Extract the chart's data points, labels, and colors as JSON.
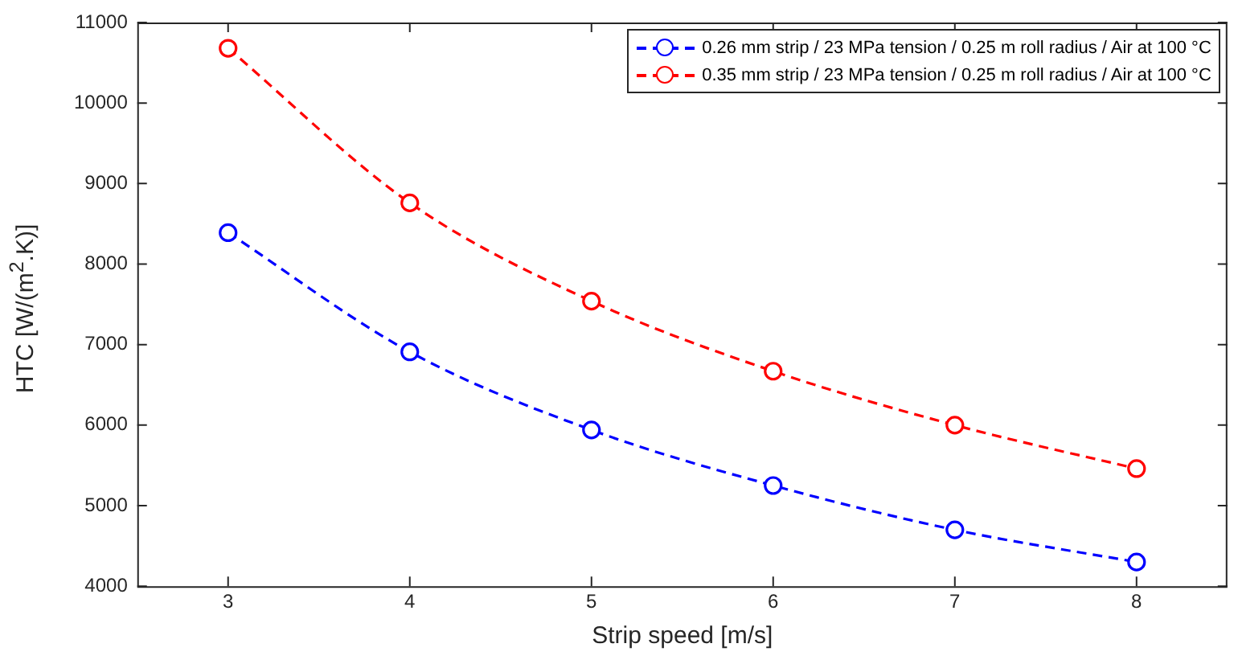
{
  "chart_data": {
    "type": "line",
    "xlabel": "Strip speed [m/s]",
    "ylabel": "HTC [W/(m$^{2}$.K)]",
    "x": [
      3,
      4,
      5,
      6,
      7,
      8
    ],
    "series": [
      {
        "name": "0.26 mm strip / 23 MPa tension / 0.25 m roll radius / Air at 100 °C",
        "color": "#0000ff",
        "values": [
          8390,
          6910,
          5940,
          5250,
          4700,
          4300
        ]
      },
      {
        "name": "0.35 mm strip / 23 MPa tension / 0.25 m roll radius / Air at 100 °C",
        "color": "#ff0000",
        "values": [
          10680,
          8760,
          7540,
          6670,
          6000,
          5460
        ]
      }
    ],
    "xlim": [
      2.5,
      8.5
    ],
    "xticks": [
      3,
      4,
      5,
      6,
      7,
      8
    ],
    "ylim": [
      4000,
      11000
    ],
    "yticks": [
      4000,
      5000,
      6000,
      7000,
      8000,
      9000,
      10000,
      11000
    ],
    "grid": false,
    "legend": "top right",
    "marker": "circle",
    "line_style": "dashed"
  }
}
